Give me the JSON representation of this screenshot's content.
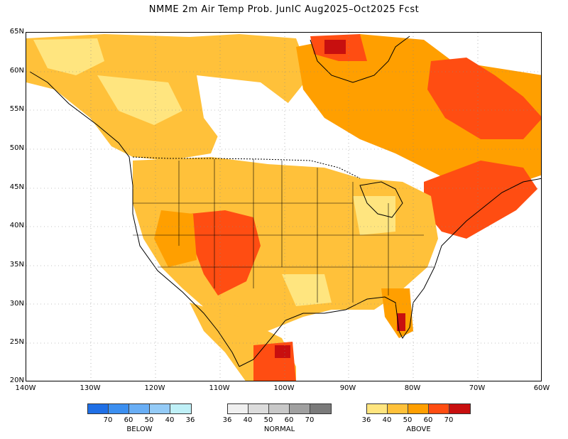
{
  "title": "NMME 2m Air Temp Prob. JunIC  Aug2025–Oct2025 Fcst",
  "lat_labels": [
    "65N",
    "60N",
    "55N",
    "50N",
    "45N",
    "40N",
    "35N",
    "30N",
    "25N",
    "20N"
  ],
  "lon_labels": [
    "140W",
    "130W",
    "120W",
    "110W",
    "100W",
    "90W",
    "80W",
    "70W",
    "60W"
  ],
  "map": {
    "lon_range": [
      -140,
      -60
    ],
    "lat_range": [
      20,
      65
    ],
    "grid": true,
    "colors": {
      "above_36_40": "#ffe57f",
      "above_40_50": "#ffc13a",
      "above_50_60": "#ff9f00",
      "above_60_70": "#ff4d12",
      "above_70": "#c80f0f",
      "land_outline": "#000000",
      "state_outline": "#000000"
    }
  },
  "legend": {
    "below": {
      "name": "BELOW",
      "ticks": [
        "70",
        "60",
        "50",
        "40",
        "36"
      ],
      "colors": [
        "#1f6fe6",
        "#3c8ff0",
        "#69aef5",
        "#94cbf7",
        "#bff0f7"
      ]
    },
    "normal": {
      "name": "NORMAL",
      "ticks": [
        "36",
        "40",
        "50",
        "60",
        "70"
      ],
      "colors": [
        "#f0f0f0",
        "#dcdcdc",
        "#c8c8c8",
        "#a0a0a0",
        "#7a7a7a"
      ]
    },
    "above": {
      "name": "ABOVE",
      "ticks": [
        "36",
        "40",
        "50",
        "60",
        "70"
      ],
      "colors": [
        "#ffe57f",
        "#ffc13a",
        "#ff9f00",
        "#ff4d12",
        "#c80f0f"
      ]
    }
  }
}
